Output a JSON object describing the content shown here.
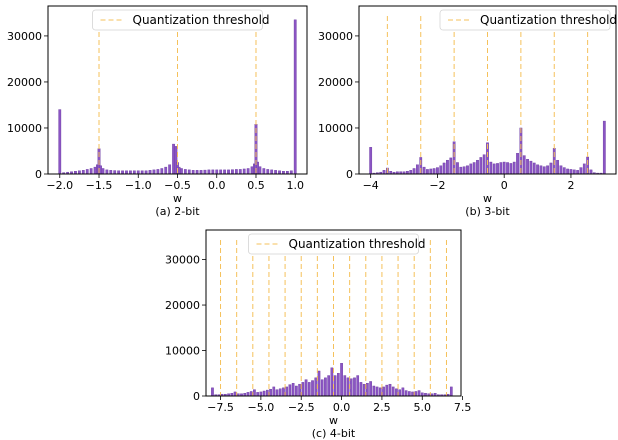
{
  "colors": {
    "bar": "#8b55c4",
    "threshold": "#f5c15b"
  },
  "chart_data": [
    {
      "type": "bar",
      "caption": "(a) 2-bit",
      "xlabel": "w",
      "ylabel": "",
      "legend": [
        "Quantization threshold"
      ],
      "legend_position": "top-center",
      "xlim": [
        -2.15,
        1.15
      ],
      "ylim": [
        0,
        36500
      ],
      "xticks": [
        -2.0,
        -1.5,
        -1.0,
        -0.5,
        0.0,
        0.5,
        1.0
      ],
      "xtick_labels": [
        "−2.0",
        "−1.5",
        "−1.0",
        "−0.5",
        "0.0",
        "0.5",
        "1.0"
      ],
      "yticks": [
        0,
        10000,
        20000,
        30000
      ],
      "ytick_labels": [
        "0",
        "10000",
        "20000",
        "30000"
      ],
      "thresholds": [
        -1.5,
        -0.5,
        0.5
      ],
      "bin_width": 0.03,
      "x": [
        -2.0,
        -1.95,
        -1.9,
        -1.85,
        -1.8,
        -1.75,
        -1.7,
        -1.65,
        -1.6,
        -1.55,
        -1.52,
        -1.5,
        -1.48,
        -1.45,
        -1.4,
        -1.35,
        -1.3,
        -1.25,
        -1.2,
        -1.15,
        -1.1,
        -1.05,
        -1.0,
        -0.95,
        -0.9,
        -0.85,
        -0.8,
        -0.75,
        -0.7,
        -0.65,
        -0.6,
        -0.55,
        -0.52,
        -0.5,
        -0.48,
        -0.45,
        -0.4,
        -0.35,
        -0.3,
        -0.25,
        -0.2,
        -0.15,
        -0.1,
        -0.05,
        0.0,
        0.05,
        0.1,
        0.15,
        0.2,
        0.25,
        0.3,
        0.35,
        0.4,
        0.45,
        0.48,
        0.5,
        0.52,
        0.55,
        0.6,
        0.65,
        0.7,
        0.75,
        0.8,
        0.85,
        0.9,
        0.95,
        1.0
      ],
      "values": [
        14000,
        300,
        400,
        500,
        600,
        700,
        800,
        1000,
        1200,
        1500,
        2000,
        5500,
        1800,
        1200,
        900,
        800,
        750,
        700,
        700,
        700,
        700,
        700,
        700,
        700,
        700,
        800,
        900,
        1000,
        1200,
        1500,
        2000,
        6500,
        6000,
        2500,
        1500,
        1200,
        1000,
        900,
        800,
        800,
        800,
        850,
        900,
        900,
        900,
        900,
        900,
        900,
        950,
        1000,
        1000,
        1100,
        1200,
        1600,
        2200,
        10800,
        2600,
        1600,
        1200,
        1000,
        900,
        800,
        700,
        600,
        600,
        700,
        33500
      ]
    },
    {
      "type": "bar",
      "caption": "(b) 3-bit",
      "xlabel": "w",
      "ylabel": "",
      "legend": [
        "Quantization threshold"
      ],
      "legend_position": "top-right",
      "xlim": [
        -4.35,
        3.35
      ],
      "ylim": [
        0,
        36500
      ],
      "xticks": [
        -4,
        -2,
        0,
        2
      ],
      "xtick_labels": [
        "−4",
        "−2",
        "0",
        "2"
      ],
      "yticks": [
        0,
        10000,
        20000,
        30000
      ],
      "ytick_labels": [
        "0",
        "10000",
        "20000",
        "30000"
      ],
      "thresholds": [
        -3.5,
        -2.5,
        -1.5,
        -0.5,
        0.5,
        1.5,
        2.5
      ],
      "bin_width": 0.07,
      "x": [
        -4.0,
        -3.9,
        -3.8,
        -3.7,
        -3.6,
        -3.5,
        -3.4,
        -3.3,
        -3.2,
        -3.1,
        -3.0,
        -2.9,
        -2.8,
        -2.7,
        -2.6,
        -2.5,
        -2.4,
        -2.3,
        -2.2,
        -2.1,
        -2.0,
        -1.9,
        -1.8,
        -1.7,
        -1.6,
        -1.5,
        -1.4,
        -1.3,
        -1.2,
        -1.1,
        -1.0,
        -0.9,
        -0.8,
        -0.7,
        -0.6,
        -0.5,
        -0.4,
        -0.3,
        -0.2,
        -0.1,
        0.0,
        0.1,
        0.2,
        0.3,
        0.4,
        0.5,
        0.6,
        0.7,
        0.8,
        0.9,
        1.0,
        1.1,
        1.2,
        1.3,
        1.4,
        1.5,
        1.6,
        1.7,
        1.8,
        1.9,
        2.0,
        2.1,
        2.2,
        2.3,
        2.4,
        2.5,
        2.6,
        2.7,
        2.8,
        2.9,
        3.0
      ],
      "values": [
        5800,
        200,
        300,
        400,
        800,
        1300,
        600,
        400,
        500,
        500,
        500,
        600,
        800,
        1200,
        2000,
        3600,
        1500,
        1000,
        1100,
        1200,
        1400,
        1800,
        2400,
        3000,
        3500,
        7000,
        2500,
        1500,
        1600,
        1800,
        2200,
        2500,
        3000,
        3600,
        4200,
        6800,
        2600,
        2200,
        2300,
        2500,
        2600,
        2500,
        2300,
        2600,
        4500,
        10000,
        4000,
        3200,
        2800,
        2400,
        2000,
        1800,
        1600,
        1800,
        2400,
        5600,
        3000,
        1800,
        1400,
        1100,
        1000,
        900,
        800,
        1400,
        2200,
        3700,
        900,
        300,
        200,
        200,
        11500
      ]
    },
    {
      "type": "bar",
      "caption": "(c) 4-bit",
      "xlabel": "w",
      "ylabel": "",
      "legend": [
        "Quantization threshold"
      ],
      "legend_position": "top-center",
      "xlim": [
        -8.4,
        7.4
      ],
      "ylim": [
        0,
        36500
      ],
      "xticks": [
        -7.5,
        -5.0,
        -2.5,
        0.0,
        2.5,
        5.0,
        7.5
      ],
      "xtick_labels": [
        "−7.5",
        "−5.0",
        "−2.5",
        "0.0",
        "2.5",
        "5.0",
        "7.5"
      ],
      "yticks": [
        0,
        10000,
        20000,
        30000
      ],
      "ytick_labels": [
        "0",
        "10000",
        "20000",
        "30000"
      ],
      "thresholds": [
        -7.5,
        -6.5,
        -5.5,
        -4.5,
        -3.5,
        -2.5,
        -1.5,
        -0.5,
        0.5,
        1.5,
        2.5,
        3.5,
        4.5,
        5.5,
        6.5
      ],
      "bin_width": 0.14,
      "x": [
        -8.0,
        -7.8,
        -7.6,
        -7.4,
        -7.2,
        -7.0,
        -6.8,
        -6.6,
        -6.4,
        -6.2,
        -6.0,
        -5.8,
        -5.6,
        -5.4,
        -5.2,
        -5.0,
        -4.8,
        -4.6,
        -4.4,
        -4.2,
        -4.0,
        -3.8,
        -3.6,
        -3.4,
        -3.2,
        -3.0,
        -2.8,
        -2.6,
        -2.4,
        -2.2,
        -2.0,
        -1.8,
        -1.6,
        -1.4,
        -1.2,
        -1.0,
        -0.8,
        -0.6,
        -0.4,
        -0.2,
        0.0,
        0.2,
        0.4,
        0.6,
        0.8,
        1.0,
        1.2,
        1.4,
        1.6,
        1.8,
        2.0,
        2.2,
        2.4,
        2.6,
        2.8,
        3.0,
        3.2,
        3.4,
        3.6,
        3.8,
        4.0,
        4.2,
        4.4,
        4.6,
        4.8,
        5.0,
        5.2,
        5.4,
        5.6,
        5.8,
        6.0,
        6.2,
        6.4,
        6.6,
        6.8
      ],
      "values": [
        1800,
        300,
        300,
        400,
        400,
        500,
        600,
        900,
        500,
        500,
        600,
        800,
        1000,
        1400,
        800,
        900,
        1100,
        1300,
        1500,
        2000,
        1400,
        1600,
        1800,
        2000,
        2500,
        2800,
        2200,
        2600,
        3000,
        3600,
        3000,
        3400,
        4000,
        5500,
        3600,
        4000,
        4500,
        6200,
        4500,
        5000,
        7200,
        4500,
        4000,
        3800,
        4000,
        4500,
        3000,
        2600,
        2800,
        3200,
        2200,
        2000,
        1800,
        2000,
        2400,
        2600,
        2000,
        1600,
        1400,
        1800,
        1200,
        1000,
        900,
        1000,
        1200,
        700,
        600,
        500,
        500,
        600,
        300,
        300,
        300,
        400,
        2000
      ]
    }
  ]
}
